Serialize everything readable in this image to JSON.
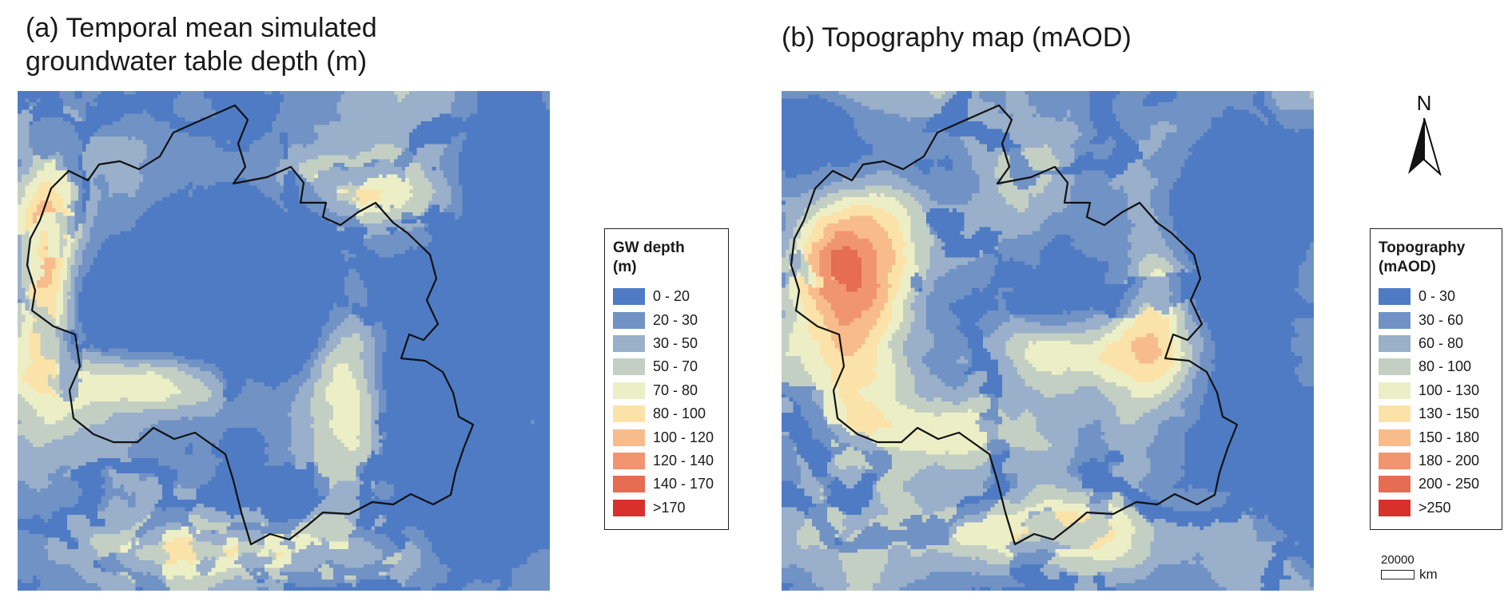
{
  "panel_a": {
    "title_line1": "(a) Temporal mean simulated",
    "title_line2": "groundwater table depth (m)",
    "legend": {
      "title_line1": "GW depth",
      "title_line2": "(m)",
      "items": [
        {
          "label": "0 - 20",
          "color": "#4e7bc4"
        },
        {
          "label": "20 - 30",
          "color": "#7192c4"
        },
        {
          "label": "30 - 50",
          "color": "#99afca"
        },
        {
          "label": "50 - 70",
          "color": "#c4cfc4"
        },
        {
          "label": "70 - 80",
          "color": "#ecefc6"
        },
        {
          "label": "80 - 100",
          "color": "#fbe2a8"
        },
        {
          "label": "100 - 120",
          "color": "#f8bc8c"
        },
        {
          "label": "120 - 140",
          "color": "#f09570"
        },
        {
          "label": "140 - 170",
          "color": "#e66c52"
        },
        {
          "label": ">170",
          "color": "#d8312c"
        }
      ]
    }
  },
  "panel_b": {
    "title": "(b) Topography map (mAOD)",
    "legend": {
      "title_line1": "Topography",
      "title_line2": "(mAOD)",
      "items": [
        {
          "label": "0 - 30",
          "color": "#4e7bc4"
        },
        {
          "label": "30 - 60",
          "color": "#7192c4"
        },
        {
          "label": "60 - 80",
          "color": "#99afca"
        },
        {
          "label": "80 - 100",
          "color": "#c4cfc4"
        },
        {
          "label": "100 - 130",
          "color": "#ecefc6"
        },
        {
          "label": "130 - 150",
          "color": "#fbe2a8"
        },
        {
          "label": "150 - 180",
          "color": "#f8bc8c"
        },
        {
          "label": "180 - 200",
          "color": "#f09570"
        },
        {
          "label": "200 - 250",
          "color": "#e66c52"
        },
        {
          "label": ">250",
          "color": "#d8312c"
        }
      ]
    }
  },
  "north_arrow": {
    "label": "N"
  },
  "scale_bar": {
    "value": "20000",
    "unit": "km"
  }
}
